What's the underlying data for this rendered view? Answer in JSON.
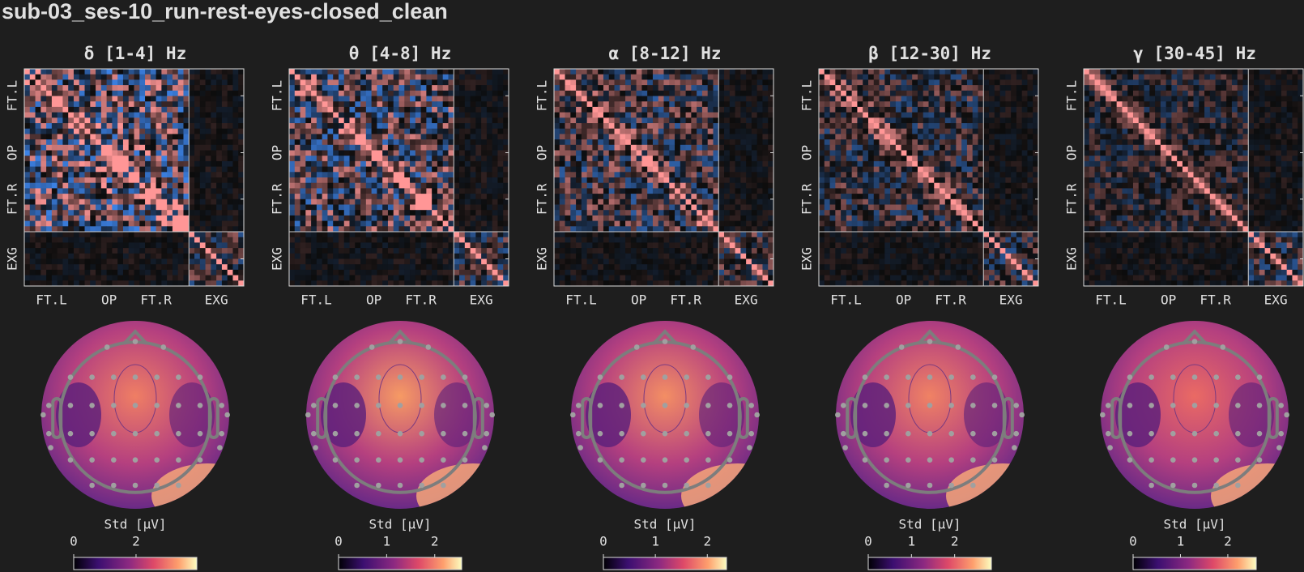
{
  "title": "sub-03_ses-10_run-rest-eyes-closed_clean",
  "panels": [
    {
      "title": "δ [1-4] Hz",
      "row_labels": [
        "FT.L",
        "OP",
        "FT.R",
        "EXG"
      ],
      "col_labels": [
        "FT.L",
        "OP",
        "FT.R",
        "EXG"
      ],
      "colorbar": {
        "label": "Std [µV]",
        "clim": [
          0,
          3.95
        ],
        "ticks": [
          0,
          2
        ]
      }
    },
    {
      "title": "θ [4-8] Hz",
      "row_labels": [
        "FT.L",
        "OP",
        "FT.R",
        "EXG"
      ],
      "col_labels": [
        "FT.L",
        "OP",
        "FT.R",
        "EXG"
      ],
      "colorbar": {
        "label": "Std [µV]",
        "clim": [
          0,
          2.56
        ],
        "ticks": [
          0,
          1,
          2
        ]
      }
    },
    {
      "title": "α [8-12] Hz",
      "row_labels": [
        "FT.L",
        "OP",
        "FT.R",
        "EXG"
      ],
      "col_labels": [
        "FT.L",
        "OP",
        "FT.R",
        "EXG"
      ],
      "colorbar": {
        "label": "Std [µV]",
        "clim": [
          0,
          2.37
        ],
        "ticks": [
          0,
          1,
          2
        ]
      }
    },
    {
      "title": "β [12-30] Hz",
      "row_labels": [
        "FT.L",
        "OP",
        "FT.R",
        "EXG"
      ],
      "col_labels": [
        "FT.L",
        "OP",
        "FT.R",
        "EXG"
      ],
      "colorbar": {
        "label": "Std [µV]",
        "clim": [
          0,
          2.85
        ],
        "ticks": [
          0,
          1,
          2
        ]
      }
    },
    {
      "title": "γ [30-45] Hz",
      "row_labels": [
        "FT.L",
        "OP",
        "FT.R",
        "EXG"
      ],
      "col_labels": [
        "FT.L",
        "OP",
        "FT.R",
        "EXG"
      ],
      "colorbar": {
        "label": "Std [µV]",
        "clim": [
          0,
          2.6
        ],
        "ticks": [
          0,
          1,
          2
        ]
      }
    }
  ]
}
